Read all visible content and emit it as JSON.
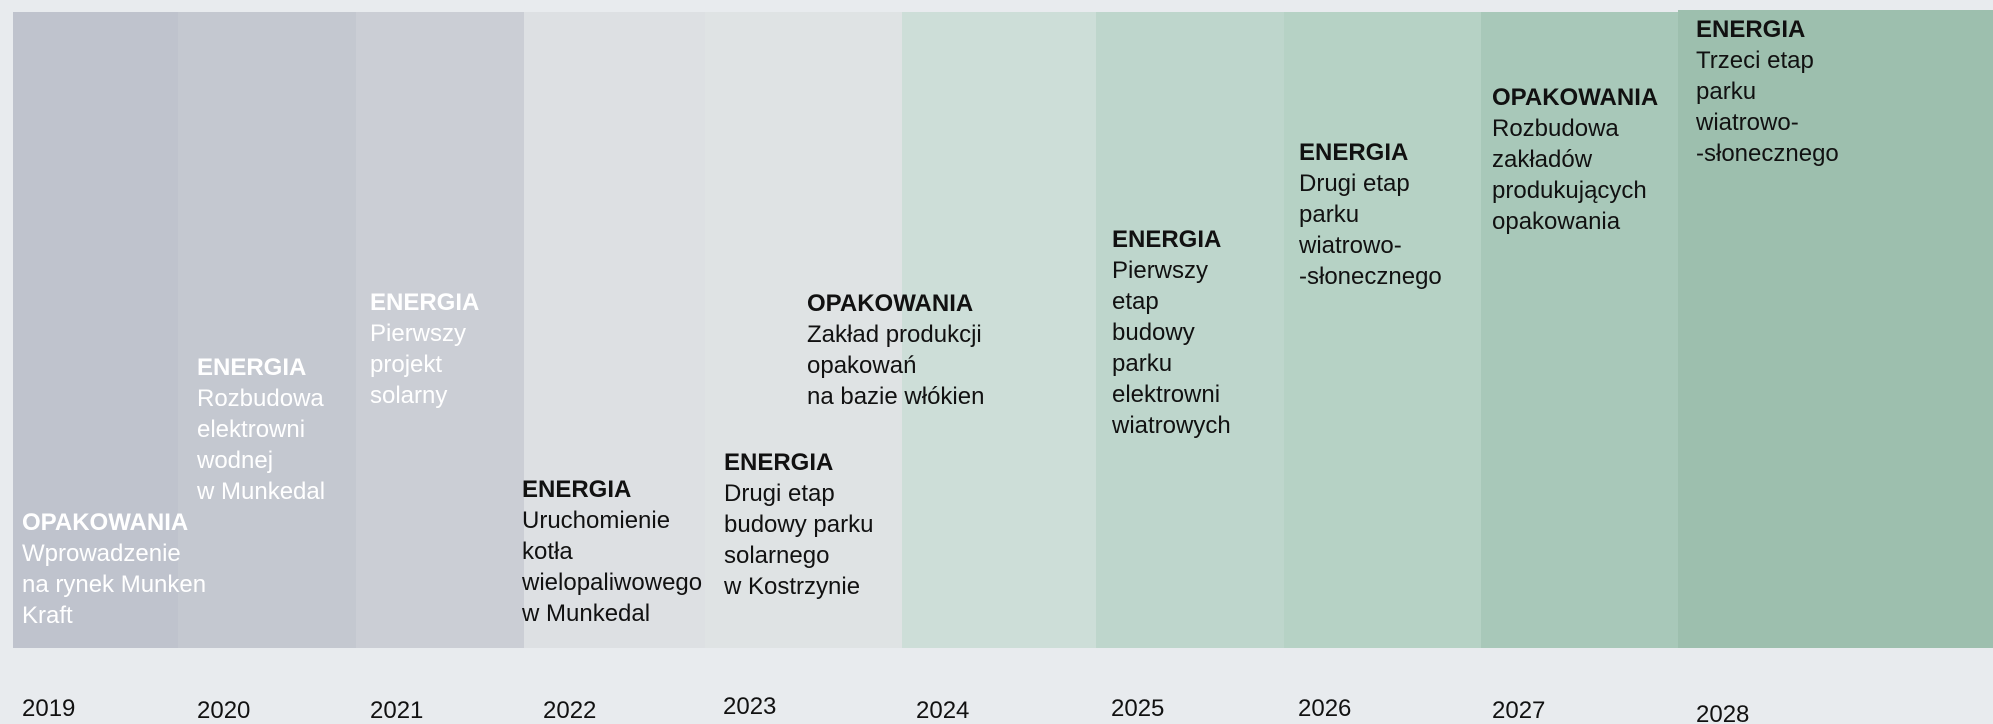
{
  "timeline": {
    "items": [
      {
        "year": "2019",
        "category": "OPAKOWANIA",
        "lines": [
          "Wprowadzenie",
          "na rynek Munken",
          "Kraft"
        ]
      },
      {
        "year": "2020",
        "category": "ENERGIA",
        "lines": [
          "Rozbudowa",
          "elektrowni",
          "wodnej",
          "w Munkedal"
        ]
      },
      {
        "year": "2021",
        "category": "ENERGIA",
        "lines": [
          "Pierwszy",
          "projekt",
          "solarny"
        ]
      },
      {
        "year": "2022",
        "category": "ENERGIA",
        "lines": [
          "Uruchomienie",
          "kotła",
          "wielopaliwowego",
          "w Munkedal"
        ]
      },
      {
        "year": "2023",
        "category": "ENERGIA",
        "lines": [
          "Drugi etap",
          "budowy parku",
          "solarnego",
          "w Kostrzynie"
        ]
      },
      {
        "year": "2024",
        "category": "OPAKOWANIA",
        "lines": [
          "Zakład produkcji",
          "opakowań",
          "na bazie włókien"
        ]
      },
      {
        "year": "2025",
        "category": "ENERGIA",
        "lines": [
          "Pierwszy",
          "etap",
          "budowy",
          "parku",
          "elektrowni",
          "wiatrowych"
        ]
      },
      {
        "year": "2026",
        "category": "ENERGIA",
        "lines": [
          "Drugi etap",
          "parku",
          "wiatrowo-",
          "-słonecznego"
        ]
      },
      {
        "year": "2027",
        "category": "OPAKOWANIA",
        "lines": [
          "Rozbudowa",
          "zakładów",
          "produkujących",
          "opakowania"
        ]
      },
      {
        "year": "2028",
        "category": "ENERGIA",
        "lines": [
          "Trzeci etap",
          "parku",
          "wiatrowo-",
          "-słonecznego"
        ]
      }
    ]
  }
}
